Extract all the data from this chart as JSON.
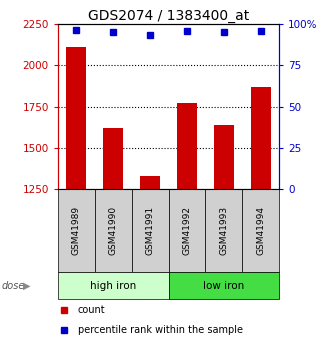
{
  "title": "GDS2074 / 1383400_at",
  "categories": [
    "GSM41989",
    "GSM41990",
    "GSM41991",
    "GSM41992",
    "GSM41993",
    "GSM41994"
  ],
  "bar_values": [
    2113,
    1622,
    1332,
    1775,
    1642,
    1870
  ],
  "percentile_values": [
    96.5,
    95.0,
    93.5,
    96.0,
    95.5,
    96.0
  ],
  "ylim_left": [
    1250,
    2250
  ],
  "ylim_right": [
    0,
    100
  ],
  "yticks_left": [
    1250,
    1500,
    1750,
    2000,
    2250
  ],
  "yticks_right": [
    0,
    25,
    50,
    75,
    100
  ],
  "bar_color": "#cc0000",
  "dot_color": "#0000cc",
  "group1_label": "high iron",
  "group2_label": "low iron",
  "group1_bg": "#ccffcc",
  "group2_bg": "#44dd44",
  "sample_bg": "#d0d0d0",
  "legend_count_label": "count",
  "legend_pct_label": "percentile rank within the sample",
  "dose_label": "dose",
  "title_fontsize": 10,
  "tick_fontsize": 7.5,
  "cat_fontsize": 6.5,
  "group_fontsize": 7.5,
  "legend_fontsize": 7
}
